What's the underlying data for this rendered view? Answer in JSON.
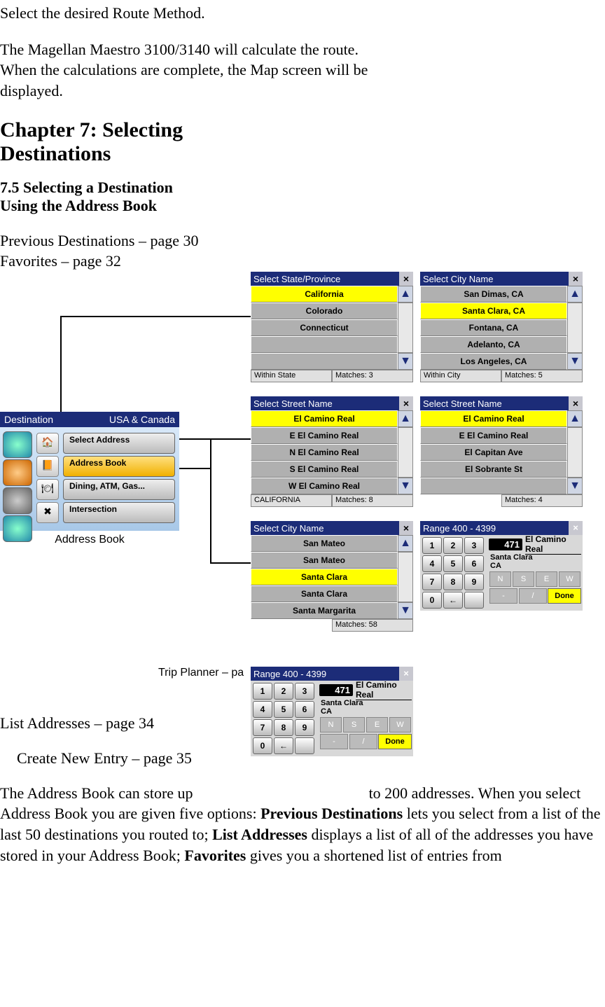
{
  "intro": {
    "line1": "Select the desired Route Method.",
    "para1": "The Magellan Maestro 3100/3140 will calculate the route. When the calculations are complete, the Map screen will be displayed."
  },
  "chapter": {
    "title": "Chapter 7: Selecting Destinations",
    "section_a": "7.5 Selecting a Destination",
    "section_b": "Using the Address Book",
    "ref1": "Previous Destinations – page 30",
    "ref2": "Favorites – page 32"
  },
  "destmenu": {
    "title_left": "Destination",
    "title_right": "USA & Canada",
    "items": [
      {
        "label": "Select Address",
        "icon": "🏠"
      },
      {
        "label": "Address Book",
        "icon": "📙"
      },
      {
        "label": "Dining, ATM, Gas...",
        "icon": "🍽"
      },
      {
        "label": "Intersection",
        "icon": "✖"
      }
    ],
    "selected_index": 1,
    "caption": "Address Book"
  },
  "panels": {
    "state": {
      "title": "Select State/Province",
      "rows": [
        "California",
        "Colorado",
        "Connecticut",
        "",
        ""
      ],
      "selected": 0,
      "status_left": "Within State",
      "status_right": "Matches:  3",
      "show_status_left": true
    },
    "city1": {
      "title": "Select City Name",
      "rows": [
        "San Dimas, CA",
        "Santa Clara, CA",
        "Fontana, CA",
        "Adelanto, CA",
        "Los Angeles, CA"
      ],
      "selected": 1,
      "status_left": "Within City",
      "status_right": "Matches:  5",
      "show_status_left": true
    },
    "street1": {
      "title": "Select Street Name",
      "rows": [
        "El Camino Real",
        "E El Camino Real",
        "N El Camino Real",
        "S El Camino Real",
        "W El Camino Real"
      ],
      "selected": 0,
      "status_left": "CALIFORNIA",
      "status_right": "Matches:  8",
      "show_status_left": true
    },
    "street2": {
      "title": "Select Street Name",
      "rows": [
        "El Camino Real",
        "E El Camino Real",
        "El Capitan Ave",
        "El Sobrante St",
        ""
      ],
      "selected": 0,
      "status_left": "",
      "status_right": "Matches:  4",
      "show_status_left": false
    },
    "city2": {
      "title": "Select City Name",
      "rows": [
        "San Mateo",
        "San Mateo",
        "Santa Clara",
        "Santa Clara",
        "Santa Margarita"
      ],
      "selected": 2,
      "status_left": "",
      "status_right": "Matches: 58",
      "show_status_left": false
    }
  },
  "keypad": {
    "title": "Range 400 - 4399",
    "entry_num": "471",
    "entry_text": "El Camino Real",
    "city": "Santa Clara",
    "state": "CA",
    "keys": [
      "1",
      "2",
      "3",
      "4",
      "5",
      "6",
      "7",
      "8",
      "9",
      "0",
      "←",
      ""
    ],
    "dirs": [
      "N",
      "S",
      "E",
      "W"
    ],
    "syms": [
      "-",
      "/"
    ],
    "done": "Done"
  },
  "trip_label": "Trip Planner – pa",
  "refs2": {
    "list": "List Addresses – page 34",
    "create": "Create New Entry – page 35"
  },
  "bodytext": {
    "t1": "The Address Book can store up",
    "t2": "to 200 addresses. When you select Address Book you are given five options: ",
    "b1": "Previous Destinations",
    "t3": " lets you select from a list of the last 50 destinations you routed to; ",
    "b2": "List Addresses",
    "t4": " displays a list of all of the addresses you have stored in your Address Book; ",
    "b3": "Favorites",
    "t5": " gives you a shortened list of entries from"
  },
  "colors": {
    "navy": "#1c2c78",
    "yellow": "#ffff00",
    "grey_row": "#b0b0b0"
  }
}
